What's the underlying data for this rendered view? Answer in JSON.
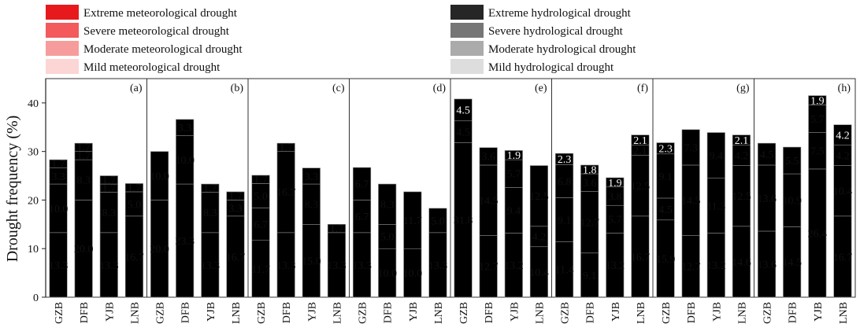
{
  "chart_data": {
    "type": "bar",
    "stacked": true,
    "ylabel": "Drought frequency (%)",
    "ylim": [
      0,
      45
    ],
    "yticks": [
      0,
      10,
      20,
      30,
      40
    ],
    "categories": [
      "GZB",
      "DFB",
      "YJB",
      "LNB"
    ],
    "legend": {
      "meteorological": [
        {
          "name": "Extreme meteorological drought",
          "color": "#e8191c"
        },
        {
          "name": "Severe meteorological drought",
          "color": "#f25a5c"
        },
        {
          "name": "Moderate meteorological drought",
          "color": "#f79c9c"
        },
        {
          "name": "Mild meteorological drought",
          "color": "#fcd5d5"
        }
      ],
      "hydrological": [
        {
          "name": "Extreme hydrological drought",
          "color": "#262626"
        },
        {
          "name": "Severe hydrological  drought",
          "color": "#767676"
        },
        {
          "name": "Moderate hydrological drought",
          "color": "#ababab"
        },
        {
          "name": "Mild hydrological drought",
          "color": "#dddddd"
        }
      ]
    },
    "panels": [
      {
        "label": "(a)",
        "kind": "meteorological",
        "bars": [
          [
            {
              "v": 13.3,
              "t": "13.3"
            },
            {
              "v": 10.0,
              "t": "10.0"
            },
            {
              "v": 3.3,
              "t": "3.3"
            },
            {
              "v": 1.7,
              "t": "1.7"
            }
          ],
          [
            {
              "v": 20.0,
              "t": "20.0"
            },
            {
              "v": 8.3,
              "t": "8.3"
            },
            {
              "v": 1.7,
              "t": "1.7"
            },
            {
              "v": 1.7,
              "t": "1.7"
            }
          ],
          [
            {
              "v": 13.3,
              "t": "13.3"
            },
            {
              "v": 8.3,
              "t": "8.3"
            },
            {
              "v": 1.7,
              "t": "1.7"
            },
            {
              "v": 1.7,
              "t": "1.7"
            }
          ],
          [
            {
              "v": 16.7,
              "t": "16.7"
            },
            {
              "v": 5.0,
              "t": "5.0"
            },
            {
              "v": 0,
              "t": ""
            },
            {
              "v": 1.7,
              "t": "1.7"
            }
          ]
        ]
      },
      {
        "label": "(b)",
        "kind": "meteorological",
        "bars": [
          [
            {
              "v": 20.0,
              "t": "20.0"
            },
            {
              "v": 10.0,
              "t": "10.0"
            },
            {
              "v": 0,
              "t": ""
            },
            {
              "v": 0,
              "t": ""
            }
          ],
          [
            {
              "v": 23.3,
              "t": "23.3"
            },
            {
              "v": 10.0,
              "t": "10.0"
            },
            {
              "v": 3.3,
              "t": "3.3"
            },
            {
              "v": 0,
              "t": ""
            }
          ],
          [
            {
              "v": 13.3,
              "t": "13.3"
            },
            {
              "v": 8.3,
              "t": "8.3"
            },
            {
              "v": 1.7,
              "t": "1.7"
            },
            {
              "v": 0,
              "t": ""
            }
          ],
          [
            {
              "v": 16.7,
              "t": "16.7"
            },
            {
              "v": 3.3,
              "t": "3.3"
            },
            {
              "v": 1.7,
              "t": "1.7"
            },
            {
              "v": 0,
              "t": ""
            }
          ]
        ]
      },
      {
        "label": "(c)",
        "kind": "meteorological",
        "bars": [
          [
            {
              "v": 11.7,
              "t": "11.7"
            },
            {
              "v": 6.7,
              "t": "6.7"
            },
            {
              "v": 5.0,
              "t": "5.0"
            },
            {
              "v": 1.7,
              "t": "1.7"
            }
          ],
          [
            {
              "v": 13.3,
              "t": "13.3"
            },
            {
              "v": 16.7,
              "t": "16.7"
            },
            {
              "v": 0,
              "t": ""
            },
            {
              "v": 1.7,
              "t": "1.7"
            }
          ],
          [
            {
              "v": 15.0,
              "t": "15.0"
            },
            {
              "v": 8.3,
              "t": "8.3"
            },
            {
              "v": 3.3,
              "t": "3.3"
            },
            {
              "v": 0,
              "t": ""
            }
          ],
          [
            {
              "v": 13.3,
              "t": "13.3"
            },
            {
              "v": 0,
              "t": ""
            },
            {
              "v": 1.7,
              "t": "1.7"
            },
            {
              "v": 0,
              "t": ""
            }
          ]
        ]
      },
      {
        "label": "(d)",
        "kind": "meteorological",
        "bars": [
          [
            {
              "v": 13.3,
              "t": "13.3"
            },
            {
              "v": 6.7,
              "t": "6.7"
            },
            {
              "v": 6.7,
              "t": "6.7"
            },
            {
              "v": 0,
              "t": ""
            }
          ],
          [
            {
              "v": 10.0,
              "t": "10.0"
            },
            {
              "v": 5.0,
              "t": "5.0"
            },
            {
              "v": 8.3,
              "t": "8.3"
            },
            {
              "v": 0,
              "t": ""
            }
          ],
          [
            {
              "v": 10.0,
              "t": "10.0"
            },
            {
              "v": 11.7,
              "t": "11.7"
            },
            {
              "v": 0,
              "t": ""
            },
            {
              "v": 0,
              "t": ""
            }
          ],
          [
            {
              "v": 13.3,
              "t": "13.3"
            },
            {
              "v": 5.0,
              "t": "5.0"
            },
            {
              "v": 0,
              "t": ""
            },
            {
              "v": 0,
              "t": ""
            }
          ]
        ]
      },
      {
        "label": "(e)",
        "kind": "hydrological",
        "bars": [
          [
            {
              "v": 31.8,
              "t": "31.8"
            },
            {
              "v": 4.5,
              "t": "4.5"
            },
            {
              "v": 0,
              "t": ""
            },
            {
              "v": 4.5,
              "t": "4.5"
            }
          ],
          [
            {
              "v": 12.7,
              "t": "12.7"
            },
            {
              "v": 14.5,
              "t": "14.5"
            },
            {
              "v": 3.6,
              "t": "3.6"
            },
            {
              "v": 0,
              "t": ""
            }
          ],
          [
            {
              "v": 13.2,
              "t": "13.2"
            },
            {
              "v": 9.4,
              "t": "9.4"
            },
            {
              "v": 5.7,
              "t": "5.7"
            },
            {
              "v": 1.9,
              "t": "1.9"
            }
          ],
          [
            {
              "v": 10.4,
              "t": "10.4"
            },
            {
              "v": 4.2,
              "t": "4.2"
            },
            {
              "v": 12.5,
              "t": "12.5"
            },
            {
              "v": 0,
              "t": ""
            }
          ]
        ]
      },
      {
        "label": "(f)",
        "kind": "hydrological",
        "bars": [
          [
            {
              "v": 11.4,
              "t": "11.4"
            },
            {
              "v": 9.1,
              "t": "9.1"
            },
            {
              "v": 6.8,
              "t": "6.8"
            },
            {
              "v": 2.3,
              "t": "2.3"
            }
          ],
          [
            {
              "v": 9.1,
              "t": "9.1"
            },
            {
              "v": 12.7,
              "t": "12.7"
            },
            {
              "v": 3.6,
              "t": "3.6"
            },
            {
              "v": 1.8,
              "t": "1.8"
            }
          ],
          [
            {
              "v": 13.2,
              "t": "13.2"
            },
            {
              "v": 5.7,
              "t": "5.7"
            },
            {
              "v": 3.8,
              "t": "3.8"
            },
            {
              "v": 1.9,
              "t": "1.9"
            }
          ],
          [
            {
              "v": 16.7,
              "t": "16.7"
            },
            {
              "v": 12.5,
              "t": "12.5"
            },
            {
              "v": 2.1,
              "t": "2.1"
            },
            {
              "v": 2.1,
              "t": "2.1"
            }
          ]
        ]
      },
      {
        "label": "(g)",
        "kind": "hydrological",
        "bars": [
          [
            {
              "v": 15.9,
              "t": "15.9"
            },
            {
              "v": 4.5,
              "t": "4.5"
            },
            {
              "v": 9.1,
              "t": "9.1"
            },
            {
              "v": 2.3,
              "t": "2.3"
            }
          ],
          [
            {
              "v": 12.7,
              "t": "12.7"
            },
            {
              "v": 14.5,
              "t": "14.5"
            },
            {
              "v": 7.3,
              "t": "7.3"
            },
            {
              "v": 0,
              "t": ""
            }
          ],
          [
            {
              "v": 13.2,
              "t": "13.2"
            },
            {
              "v": 11.3,
              "t": "11.3"
            },
            {
              "v": 9.4,
              "t": "9.4"
            },
            {
              "v": 0,
              "t": ""
            }
          ],
          [
            {
              "v": 14.6,
              "t": "14.6"
            },
            {
              "v": 12.5,
              "t": "12.5"
            },
            {
              "v": 4.2,
              "t": "4.2"
            },
            {
              "v": 2.1,
              "t": "2.1"
            }
          ]
        ]
      },
      {
        "label": "(h)",
        "kind": "hydrological",
        "bars": [
          [
            {
              "v": 13.6,
              "t": "13.6"
            },
            {
              "v": 13.6,
              "t": "13.6"
            },
            {
              "v": 4.5,
              "t": "4.5"
            },
            {
              "v": 0,
              "t": ""
            }
          ],
          [
            {
              "v": 14.5,
              "t": "14.5"
            },
            {
              "v": 10.9,
              "t": "10.9"
            },
            {
              "v": 5.5,
              "t": "5.5"
            },
            {
              "v": 0,
              "t": ""
            }
          ],
          [
            {
              "v": 26.4,
              "t": "26.4"
            },
            {
              "v": 7.5,
              "t": "7.5"
            },
            {
              "v": 5.7,
              "t": "5.7"
            },
            {
              "v": 1.9,
              "t": "1.9"
            }
          ],
          [
            {
              "v": 16.7,
              "t": "16.7"
            },
            {
              "v": 10.4,
              "t": "10.4"
            },
            {
              "v": 4.2,
              "t": "4.2"
            },
            {
              "v": 4.2,
              "t": "4.2"
            }
          ]
        ]
      }
    ]
  }
}
